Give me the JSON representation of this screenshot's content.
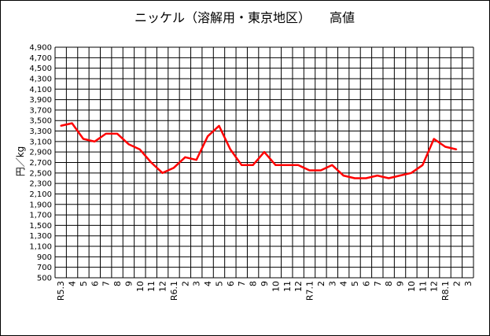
{
  "chart_data": {
    "type": "line",
    "title": "ニッケル（溶解用・東京地区）　　高値",
    "ylabel": "円／kg",
    "xlabel": "",
    "ylim": [
      500,
      4900
    ],
    "ytick_step": 200,
    "grid": true,
    "line_color": "#ff0000",
    "categories": [
      "R5.3",
      "4",
      "5",
      "6",
      "7",
      "8",
      "9",
      "10",
      "11",
      "12",
      "R6.1",
      "2",
      "3",
      "4",
      "5",
      "6",
      "7",
      "8",
      "9",
      "10",
      "11",
      "12",
      "R7.1",
      "2",
      "3",
      "4",
      "5",
      "6",
      "7",
      "8",
      "9",
      "10",
      "11",
      "12",
      "R8.1",
      "2",
      "3"
    ],
    "series": [
      {
        "values": [
          3400,
          3450,
          3150,
          3100,
          3250,
          3250,
          3050,
          2950,
          2700,
          2500,
          2600,
          2800,
          2750,
          3200,
          3400,
          2950,
          2650,
          2650,
          2900,
          2650,
          2650,
          2650,
          2550,
          2550,
          2650,
          2450,
          2400,
          2400,
          2450,
          2400,
          2450,
          2500,
          2650,
          3150,
          3000,
          2950,
          null
        ]
      }
    ]
  }
}
